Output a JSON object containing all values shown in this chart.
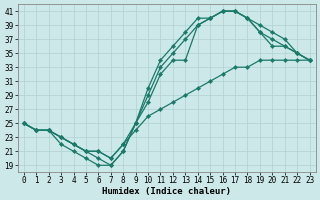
{
  "xlabel": "Humidex (Indice chaleur)",
  "bg_color": "#cce8e8",
  "line_color": "#1a7a6a",
  "grid_color": "#b0d0d0",
  "xlim": [
    -0.5,
    23.5
  ],
  "ylim": [
    18,
    42
  ],
  "xticks": [
    0,
    1,
    2,
    3,
    4,
    5,
    6,
    7,
    8,
    9,
    10,
    11,
    12,
    13,
    14,
    15,
    16,
    17,
    18,
    19,
    20,
    21,
    22,
    23
  ],
  "yticks": [
    19,
    21,
    23,
    25,
    27,
    29,
    31,
    33,
    35,
    37,
    39,
    41
  ],
  "lines": [
    {
      "x": [
        0,
        1,
        2,
        3,
        4,
        5,
        6,
        7,
        8,
        9,
        10,
        11,
        12,
        13,
        14,
        15,
        16,
        17,
        18,
        19,
        20,
        21,
        22,
        23
      ],
      "y": [
        25,
        24,
        24,
        22,
        21,
        20,
        19,
        19,
        21,
        25,
        30,
        34,
        36,
        38,
        40,
        40,
        41,
        41,
        40,
        38,
        36,
        36,
        35,
        34
      ]
    },
    {
      "x": [
        0,
        1,
        2,
        3,
        4,
        5,
        6,
        7,
        8,
        9,
        10,
        11,
        12,
        13,
        14,
        15,
        16,
        17,
        18,
        19,
        20,
        21,
        22,
        23
      ],
      "y": [
        25,
        24,
        24,
        23,
        22,
        21,
        20,
        19,
        21,
        25,
        29,
        33,
        35,
        37,
        39,
        40,
        41,
        41,
        40,
        39,
        38,
        37,
        35,
        34
      ]
    },
    {
      "x": [
        0,
        1,
        2,
        3,
        4,
        5,
        6,
        7,
        8,
        9,
        10,
        11,
        12,
        13,
        14,
        15,
        16,
        17,
        18,
        19,
        20,
        21,
        22,
        23
      ],
      "y": [
        25,
        24,
        24,
        23,
        22,
        21,
        21,
        20,
        22,
        25,
        28,
        32,
        34,
        34,
        39,
        40,
        41,
        41,
        40,
        38,
        37,
        36,
        35,
        34
      ]
    },
    {
      "x": [
        0,
        1,
        2,
        3,
        4,
        5,
        6,
        7,
        8,
        9,
        10,
        11,
        12,
        13,
        14,
        15,
        16,
        17,
        18,
        19,
        20,
        21,
        22,
        23
      ],
      "y": [
        25,
        24,
        24,
        23,
        22,
        21,
        21,
        20,
        22,
        24,
        26,
        27,
        28,
        29,
        30,
        31,
        32,
        33,
        33,
        34,
        34,
        34,
        34,
        34
      ]
    }
  ],
  "marker": "D",
  "markersize": 2.2,
  "linewidth": 0.9,
  "tick_fontsize": 5.5,
  "xlabel_fontsize": 6.5
}
